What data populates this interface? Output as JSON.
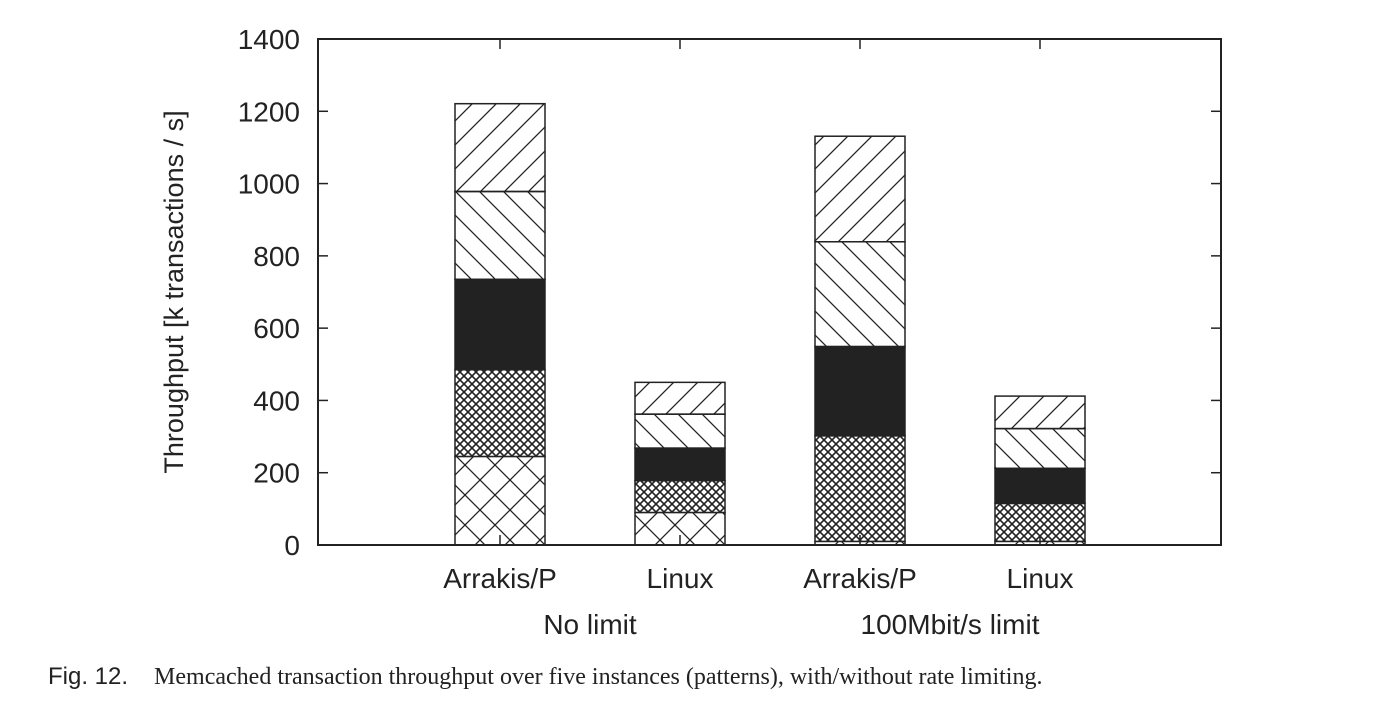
{
  "chart_data": {
    "type": "bar",
    "stacked": true,
    "categories": [
      "Arrakis/P",
      "Linux",
      "Arrakis/P",
      "Linux"
    ],
    "groups": [
      "No limit",
      "No limit",
      "100Mbit/s limit",
      "100Mbit/s limit"
    ],
    "group_labels": [
      "No limit",
      "100Mbit/s limit"
    ],
    "ylabel": "Throughput [k transactions / s]",
    "xlabel": "",
    "ylim": [
      0,
      1400
    ],
    "yticks": [
      0,
      200,
      400,
      600,
      800,
      1000,
      1200,
      1400
    ],
    "series": [
      {
        "pattern": "crosshatch",
        "values": [
          245,
          90,
          10,
          10
        ]
      },
      {
        "pattern": "dense-crosshatch",
        "values": [
          240,
          88,
          292,
          105
        ]
      },
      {
        "pattern": "solid-black",
        "values": [
          250,
          90,
          247,
          97
        ]
      },
      {
        "pattern": "backslash-hatch",
        "values": [
          243,
          94,
          290,
          110
        ]
      },
      {
        "pattern": "slash-hatch",
        "values": [
          243,
          88,
          292,
          90
        ]
      }
    ],
    "totals": [
      1221,
      450,
      1131,
      412
    ],
    "grid": false,
    "legend": "none"
  },
  "caption": {
    "label": "Fig. 12.",
    "text": "Memcached transaction throughput over five instances (patterns), with/without rate limiting."
  }
}
